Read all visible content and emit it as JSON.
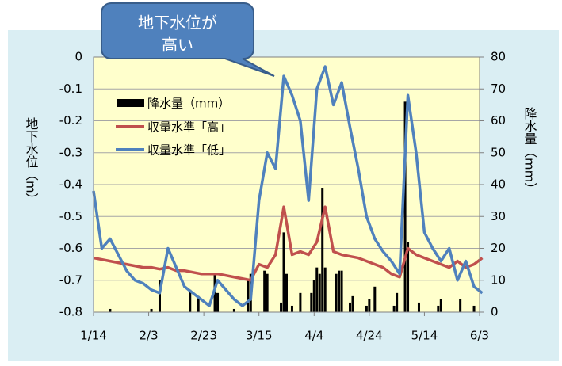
{
  "chart_data": {
    "type": "line",
    "annotation": [
      "地下水位が",
      "高い"
    ],
    "ylabel": "地下水位（m）",
    "y2label": "降水量（mm）",
    "x": [
      0,
      3,
      6,
      9,
      12,
      15,
      18,
      21,
      24,
      27,
      30,
      33,
      36,
      39,
      42,
      45,
      48,
      51,
      54,
      57,
      60,
      63,
      66,
      69,
      72,
      75,
      78,
      81,
      84,
      87,
      90,
      93,
      96,
      99,
      102,
      105,
      108,
      111,
      114,
      117,
      120,
      123,
      126,
      129,
      132,
      135,
      138,
      141
    ],
    "xlim": [
      0,
      140
    ],
    "xticks": [
      {
        "value": 0,
        "label": "1/14"
      },
      {
        "value": 20,
        "label": "2/3"
      },
      {
        "value": 40,
        "label": "2/23"
      },
      {
        "value": 60,
        "label": "3/15"
      },
      {
        "value": 80,
        "label": "4/4"
      },
      {
        "value": 100,
        "label": "4/24"
      },
      {
        "value": 120,
        "label": "5/14"
      },
      {
        "value": 140,
        "label": "6/3"
      }
    ],
    "ylim": [
      -0.8,
      0
    ],
    "yticks": [
      0,
      -0.1,
      -0.2,
      -0.3,
      -0.4,
      -0.5,
      -0.6,
      -0.7,
      -0.8
    ],
    "y2lim": [
      0,
      80
    ],
    "y2ticks": [
      0,
      10,
      20,
      30,
      40,
      50,
      60,
      70,
      80
    ],
    "grid": true,
    "series": [
      {
        "name": "収量水準「高」",
        "color": "#c0504d",
        "values": [
          -0.63,
          -0.635,
          -0.64,
          -0.645,
          -0.65,
          -0.655,
          -0.66,
          -0.66,
          -0.665,
          -0.66,
          -0.67,
          -0.67,
          -0.675,
          -0.68,
          -0.68,
          -0.68,
          -0.685,
          -0.69,
          -0.695,
          -0.7,
          -0.65,
          -0.66,
          -0.62,
          -0.47,
          -0.62,
          -0.61,
          -0.62,
          -0.58,
          -0.47,
          -0.61,
          -0.62,
          -0.625,
          -0.63,
          -0.64,
          -0.65,
          -0.66,
          -0.68,
          -0.69,
          -0.6,
          -0.62,
          -0.63,
          -0.64,
          -0.65,
          -0.66,
          -0.64,
          -0.66,
          -0.65,
          -0.63
        ]
      },
      {
        "name": "収量水準「低」",
        "color": "#4f81bd",
        "values": [
          -0.42,
          -0.6,
          -0.57,
          -0.62,
          -0.67,
          -0.7,
          -0.71,
          -0.73,
          -0.74,
          -0.6,
          -0.66,
          -0.72,
          -0.74,
          -0.76,
          -0.78,
          -0.7,
          -0.73,
          -0.76,
          -0.78,
          -0.76,
          -0.45,
          -0.3,
          -0.35,
          -0.06,
          -0.12,
          -0.2,
          -0.45,
          -0.1,
          -0.03,
          -0.15,
          -0.08,
          -0.22,
          -0.35,
          -0.5,
          -0.57,
          -0.61,
          -0.64,
          -0.68,
          -0.12,
          -0.3,
          -0.55,
          -0.6,
          -0.64,
          -0.6,
          -0.7,
          -0.64,
          -0.72,
          -0.74
        ]
      },
      {
        "name": "降水量（mm）",
        "color": "#000000",
        "axis": "y2",
        "kind": "bar",
        "x": [
          6,
          21,
          24,
          35,
          38,
          44,
          45,
          51,
          56,
          57,
          62,
          63,
          68,
          69,
          70,
          72,
          75,
          79,
          80,
          81,
          82,
          83,
          84,
          88,
          89,
          90,
          93,
          94,
          99,
          100,
          102,
          109,
          110,
          113,
          114,
          118,
          125,
          126,
          133,
          138
        ],
        "values": [
          1,
          1,
          10,
          7,
          5,
          12,
          6,
          1,
          10,
          12,
          13,
          12,
          3,
          25,
          12,
          2,
          6,
          6,
          10,
          14,
          12,
          39,
          14,
          12,
          13,
          13,
          3,
          5,
          2,
          4,
          8,
          2,
          6,
          66,
          22,
          3,
          2,
          4,
          4,
          2
        ]
      }
    ]
  }
}
